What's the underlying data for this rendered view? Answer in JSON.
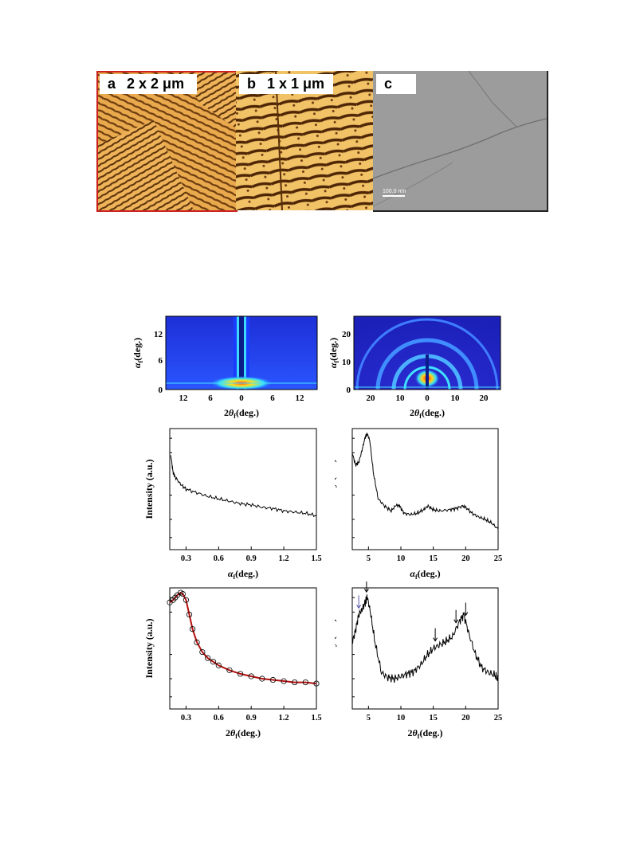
{
  "top_panels": [
    {
      "letter": "a",
      "scale": "2 x 2 μm"
    },
    {
      "letter": "b",
      "scale": "1 x 1 μm"
    },
    {
      "letter": "c",
      "scale": ""
    }
  ],
  "tem_scalebar": "100.0 nm",
  "colors": {
    "afm_light": "#f5c26a",
    "afm_dark": "#5a3008",
    "frame_red": "#cc2222",
    "fit_red": "#b40f0f"
  },
  "gisaxs": {
    "left": {
      "ylabel_symbol": "α",
      "ylabel_sub": "f",
      "ylabel_unit": "(deg.)",
      "xlabel_prefix": "2",
      "xlabel_symbol": "θ",
      "xlabel_sub": "f",
      "xlabel_unit": "(deg.)",
      "xticks": [
        "12",
        "6",
        "0",
        "6",
        "12"
      ],
      "yticks": [
        "12",
        "6",
        "0"
      ]
    },
    "right": {
      "ylabel_symbol": "α",
      "ylabel_sub": "f",
      "ylabel_unit": "(deg.)",
      "xlabel_prefix": "2",
      "xlabel_symbol": "θ",
      "xlabel_sub": "f",
      "xlabel_unit": "(deg.)",
      "xticks": [
        "20",
        "10",
        "0",
        "10",
        "20"
      ],
      "yticks": [
        "20",
        "10",
        "0"
      ]
    }
  },
  "chart_data": [
    {
      "type": "line",
      "ylabel": "Intensity (a.u.)",
      "xlabel_symbol": "α",
      "xlabel_sub": "f",
      "xlabel_unit": "(deg.)",
      "xlabel_prefix": "",
      "xlim": [
        0.15,
        1.5
      ],
      "xticks": [
        "0.3",
        "0.6",
        "0.9",
        "1.2",
        "1.5"
      ],
      "xtick_values": [
        0.3,
        0.6,
        0.9,
        1.2,
        1.5
      ],
      "yscale": "log",
      "x": [
        0.16,
        0.18,
        0.2,
        0.25,
        0.3,
        0.4,
        0.5,
        0.6,
        0.7,
        0.8,
        0.9,
        1.0,
        1.1,
        1.2,
        1.3,
        1.4,
        1.5
      ],
      "y": [
        0.78,
        0.64,
        0.6,
        0.54,
        0.5,
        0.47,
        0.44,
        0.42,
        0.4,
        0.38,
        0.37,
        0.35,
        0.34,
        0.32,
        0.31,
        0.3,
        0.28
      ]
    },
    {
      "type": "line",
      "ylabel": "Intensity (a.u.)",
      "xlabel_symbol": "α",
      "xlabel_sub": "f",
      "xlabel_unit": "(deg.)",
      "xlabel_prefix": "",
      "xlim": [
        2.5,
        25
      ],
      "xticks": [
        "5",
        "10",
        "15",
        "20",
        "25"
      ],
      "xtick_values": [
        5,
        10,
        15,
        20,
        25
      ],
      "yscale": "log",
      "x": [
        2.5,
        3.0,
        3.5,
        4.0,
        4.5,
        4.8,
        5.2,
        5.8,
        6.5,
        7.5,
        8.5,
        9.3,
        9.8,
        10.5,
        11.5,
        12.5,
        13.5,
        14.2,
        15.0,
        16.0,
        17.5,
        18.5,
        19.5,
        20.0,
        21.0,
        22.0,
        23.0,
        24.0,
        25.0
      ],
      "y": [
        0.8,
        0.7,
        0.72,
        0.82,
        0.93,
        0.96,
        0.9,
        0.62,
        0.42,
        0.36,
        0.32,
        0.37,
        0.36,
        0.3,
        0.29,
        0.3,
        0.33,
        0.36,
        0.33,
        0.32,
        0.33,
        0.34,
        0.36,
        0.35,
        0.3,
        0.27,
        0.25,
        0.22,
        0.17
      ]
    },
    {
      "type": "scatter",
      "ylabel": "Intensity (a.u.)",
      "xlabel_symbol": "θ",
      "xlabel_sub": "f",
      "xlabel_unit": "(deg.)",
      "xlabel_prefix": "2",
      "xlim": [
        0.15,
        1.5
      ],
      "xticks": [
        "0.3",
        "0.6",
        "0.9",
        "1.2",
        "1.5"
      ],
      "xtick_values": [
        0.3,
        0.6,
        0.9,
        1.2,
        1.5
      ],
      "yscale": "log",
      "x": [
        0.15,
        0.18,
        0.2,
        0.22,
        0.25,
        0.27,
        0.3,
        0.33,
        0.36,
        0.4,
        0.45,
        0.5,
        0.55,
        0.6,
        0.7,
        0.8,
        0.9,
        1.0,
        1.1,
        1.2,
        1.3,
        1.4,
        1.5
      ],
      "y": [
        0.88,
        0.9,
        0.92,
        0.94,
        0.96,
        0.95,
        0.9,
        0.78,
        0.66,
        0.55,
        0.47,
        0.42,
        0.39,
        0.36,
        0.32,
        0.29,
        0.27,
        0.25,
        0.24,
        0.23,
        0.22,
        0.22,
        0.21
      ]
    },
    {
      "type": "line",
      "ylabel": "Intensity (a.u.)",
      "xlabel_symbol": "θ",
      "xlabel_sub": "f",
      "xlabel_unit": "(deg.)",
      "xlabel_prefix": "2",
      "xlim": [
        2.5,
        25
      ],
      "xticks": [
        "5",
        "10",
        "15",
        "20",
        "25"
      ],
      "xtick_values": [
        5,
        10,
        15,
        20,
        25
      ],
      "yscale": "log",
      "x": [
        2.5,
        3.0,
        3.5,
        4.0,
        4.5,
        4.8,
        5.3,
        6.0,
        7.0,
        8.0,
        9.0,
        10.0,
        11.0,
        12.0,
        13.0,
        14.0,
        15.0,
        16.0,
        17.0,
        18.0,
        19.0,
        19.7,
        20.5,
        21.5,
        22.5,
        23.5,
        24.5,
        25.0
      ],
      "y": [
        0.55,
        0.65,
        0.78,
        0.82,
        0.88,
        0.93,
        0.8,
        0.55,
        0.3,
        0.26,
        0.25,
        0.27,
        0.29,
        0.31,
        0.36,
        0.44,
        0.5,
        0.53,
        0.56,
        0.6,
        0.72,
        0.78,
        0.62,
        0.45,
        0.34,
        0.3,
        0.28,
        0.24
      ],
      "arrow_x": [
        3.5,
        4.7,
        15.3,
        18.5,
        20.0
      ]
    }
  ]
}
